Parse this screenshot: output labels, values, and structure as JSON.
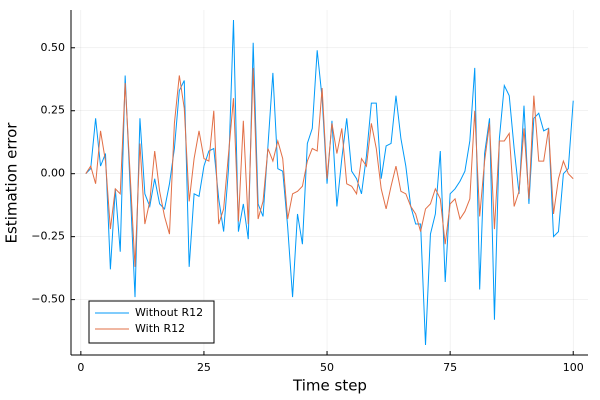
{
  "chart_data": {
    "type": "line",
    "x_label": "Time step",
    "y_label": "Estimation error",
    "x": [
      1,
      2,
      3,
      4,
      5,
      6,
      7,
      8,
      9,
      10,
      11,
      12,
      13,
      14,
      15,
      16,
      17,
      18,
      19,
      20,
      21,
      22,
      23,
      24,
      25,
      26,
      27,
      28,
      29,
      30,
      31,
      32,
      33,
      34,
      35,
      36,
      37,
      38,
      39,
      40,
      41,
      42,
      43,
      44,
      45,
      46,
      47,
      48,
      49,
      50,
      51,
      52,
      53,
      54,
      55,
      56,
      57,
      58,
      59,
      60,
      61,
      62,
      63,
      64,
      65,
      66,
      67,
      68,
      69,
      70,
      71,
      72,
      73,
      74,
      75,
      76,
      77,
      78,
      79,
      80,
      81,
      82,
      83,
      84,
      85,
      86,
      87,
      88,
      89,
      90,
      91,
      92,
      93,
      94,
      95,
      96,
      97,
      98,
      99,
      100
    ],
    "series": [
      {
        "name": "Without R12",
        "color": "#009af9",
        "values": [
          0.0,
          0.02,
          0.22,
          0.03,
          0.08,
          -0.38,
          -0.06,
          -0.31,
          0.39,
          -0.05,
          -0.49,
          0.22,
          -0.08,
          -0.13,
          -0.02,
          -0.12,
          -0.14,
          -0.04,
          0.1,
          0.33,
          0.37,
          -0.37,
          -0.08,
          -0.09,
          0.03,
          0.09,
          0.1,
          -0.1,
          -0.23,
          0.02,
          0.61,
          -0.23,
          -0.12,
          -0.26,
          0.52,
          -0.12,
          -0.17,
          0.11,
          0.4,
          0.02,
          0.01,
          -0.21,
          -0.49,
          -0.16,
          -0.28,
          0.12,
          0.18,
          0.49,
          0.3,
          -0.04,
          0.21,
          -0.13,
          0.06,
          0.22,
          0.01,
          -0.02,
          -0.08,
          0.07,
          0.28,
          0.28,
          -0.02,
          0.11,
          0.12,
          0.31,
          0.14,
          0.03,
          -0.13,
          -0.2,
          -0.2,
          -0.68,
          -0.24,
          -0.16,
          0.09,
          -0.43,
          -0.08,
          -0.06,
          -0.03,
          0.01,
          0.13,
          0.42,
          -0.46,
          0.08,
          0.22,
          -0.58,
          0.14,
          0.35,
          0.31,
          0.1,
          -0.08,
          0.27,
          -0.12,
          0.22,
          0.24,
          0.17,
          0.18,
          -0.25,
          -0.23,
          0.0,
          0.02,
          0.29
        ]
      },
      {
        "name": "With R12",
        "color": "#e26f46",
        "values": [
          0.0,
          0.03,
          -0.04,
          0.17,
          0.05,
          -0.22,
          -0.06,
          -0.08,
          0.36,
          0.0,
          -0.37,
          0.12,
          -0.2,
          -0.11,
          0.09,
          -0.07,
          -0.17,
          -0.24,
          0.2,
          0.39,
          0.26,
          -0.11,
          0.06,
          0.17,
          0.06,
          0.05,
          0.25,
          -0.2,
          -0.14,
          0.08,
          0.3,
          -0.19,
          0.21,
          -0.2,
          0.42,
          -0.18,
          -0.11,
          0.1,
          0.05,
          0.13,
          0.06,
          -0.18,
          -0.08,
          -0.07,
          -0.05,
          0.05,
          0.1,
          0.09,
          0.34,
          -0.02,
          0.2,
          0.08,
          0.18,
          -0.04,
          -0.05,
          -0.08,
          0.06,
          0.03,
          0.2,
          0.1,
          -0.06,
          -0.14,
          -0.05,
          0.03,
          -0.07,
          -0.08,
          -0.13,
          -0.16,
          -0.23,
          -0.14,
          -0.12,
          -0.06,
          -0.1,
          -0.28,
          -0.12,
          -0.1,
          -0.18,
          -0.15,
          -0.1,
          0.25,
          -0.17,
          0.05,
          0.2,
          -0.22,
          0.13,
          0.13,
          0.16,
          -0.13,
          -0.07,
          0.18,
          -0.1,
          0.31,
          0.05,
          0.05,
          0.18,
          -0.16,
          -0.02,
          0.05,
          0.0,
          -0.02
        ]
      }
    ],
    "xlim": [
      -2,
      103
    ],
    "ylim": [
      -0.72,
      0.65
    ],
    "xticks": [
      0,
      25,
      50,
      75,
      100
    ],
    "yticks": [
      {
        "value": -0.5,
        "label": "−0.50"
      },
      {
        "value": -0.25,
        "label": "−0.25"
      },
      {
        "value": 0,
        "label": "0.00"
      },
      0.25,
      {
        "value": 0.5,
        "label": "0.50"
      }
    ],
    "grid": true,
    "legend": "bottom-left"
  }
}
